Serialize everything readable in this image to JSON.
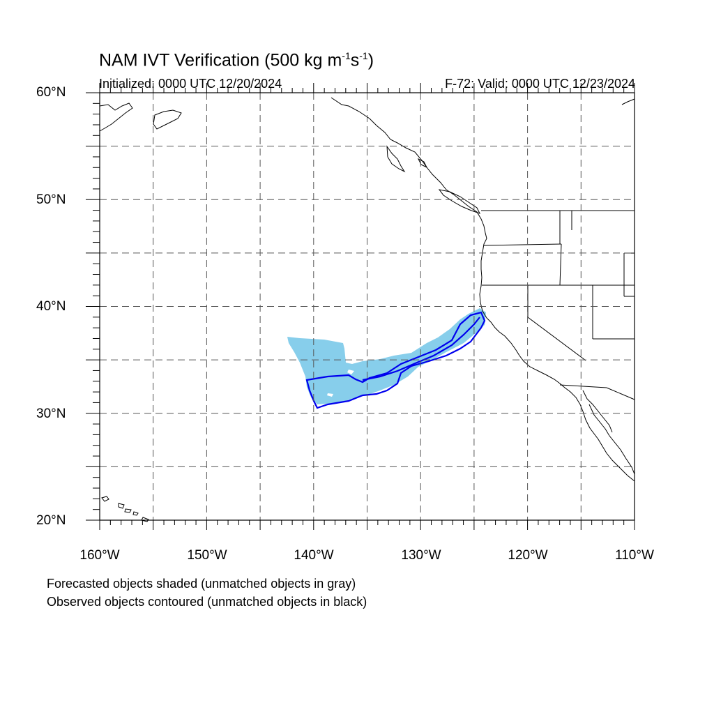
{
  "title": {
    "prefix": "NAM IVT Verification (500 kg m",
    "exp1": "-1",
    "mid": "s",
    "exp2": "-1",
    "suffix": ")"
  },
  "initialized": "Initialized: 0000 UTC 12/20/2024",
  "valid": "F-72: Valid: 0000 UTC 12/23/2024",
  "lat_labels": [
    "60°N",
    "50°N",
    "40°N",
    "30°N",
    "20°N"
  ],
  "lon_labels": [
    "160°W",
    "150°W",
    "140°W",
    "130°W",
    "120°W",
    "110°W"
  ],
  "footnotes": [
    "Forecasted objects shaded (unmatched objects in gray)",
    "Observed objects contoured (unmatched objects in black)"
  ],
  "map": {
    "lat_range": [
      20,
      60
    ],
    "lon_range": [
      -160,
      -110
    ],
    "grid_interval_deg": 5,
    "grid_style": "dashed",
    "forecast_object": {
      "fill_color": "#87ceeb",
      "matched": true,
      "approx_region": {
        "lat": [
          30.5,
          39.8
        ],
        "lon": [
          -142.5,
          -123.6
        ]
      }
    },
    "observed_object": {
      "contour_color": "#0000ee",
      "matched": true,
      "approx_region": {
        "lat": [
          30.6,
          39.6
        ],
        "lon": [
          -140.7,
          -123.8
        ]
      }
    },
    "coastline_color": "#000000"
  }
}
